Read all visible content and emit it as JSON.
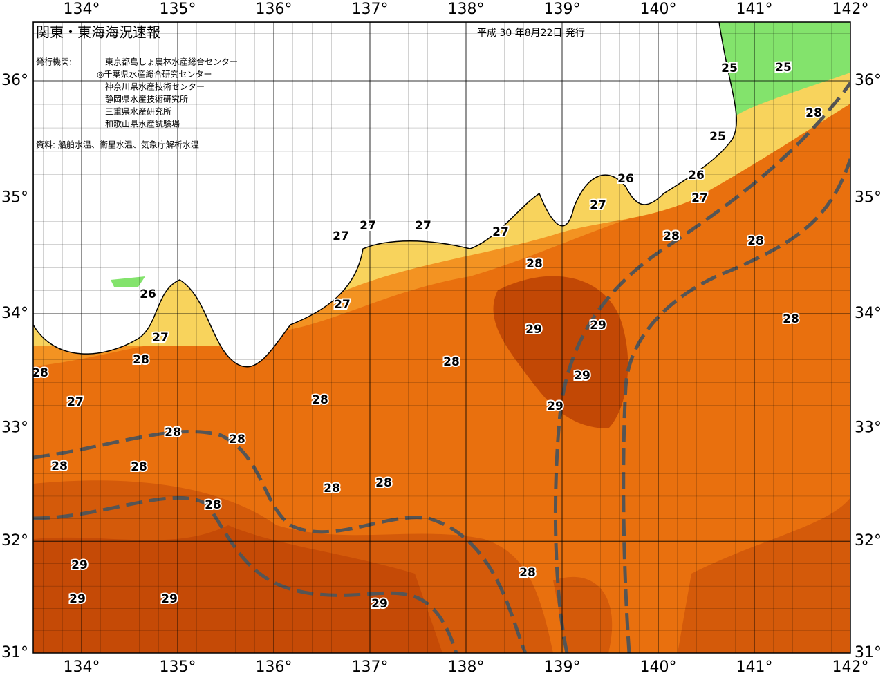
{
  "header": {
    "title": "関東・東海海況速報",
    "date": "平成 30 年8月22日 発行",
    "publisher_label": "発行機関:",
    "publishers": [
      "東京都島しょ農林水産総合センター",
      "◎千葉県水産総合研究センター",
      "神奈川県水産技術センター",
      "静岡県水産技術研究所",
      "三重県水産研究所",
      "和歌山県水産試験場"
    ],
    "source": "資料: 船舶水温、衛星水温、気象庁解析水温"
  },
  "map": {
    "lon_ticks": [
      {
        "value": 134,
        "label": "134°"
      },
      {
        "value": 135,
        "label": "135°"
      },
      {
        "value": 136,
        "label": "136°"
      },
      {
        "value": 137,
        "label": "137°"
      },
      {
        "value": 138,
        "label": "138°"
      },
      {
        "value": 139,
        "label": "139°"
      },
      {
        "value": 140,
        "label": "140°"
      },
      {
        "value": 141,
        "label": "141°"
      },
      {
        "value": 142,
        "label": "142°"
      }
    ],
    "lat_ticks": [
      {
        "value": 31,
        "label": "31°"
      },
      {
        "value": 32,
        "label": "32°"
      },
      {
        "value": 33,
        "label": "33°"
      },
      {
        "value": 34,
        "label": "34°"
      },
      {
        "value": 35,
        "label": "35°"
      },
      {
        "value": 36,
        "label": "36°"
      }
    ],
    "contour_labels": [
      25,
      25,
      28,
      25,
      26,
      26,
      27,
      27,
      28,
      28,
      27,
      27,
      27,
      27,
      28,
      26,
      27,
      28,
      29,
      29,
      27,
      28,
      28,
      29,
      28,
      27,
      28,
      29,
      28,
      28,
      28,
      28,
      28,
      28,
      28,
      29,
      28,
      29,
      29,
      29
    ]
  }
}
